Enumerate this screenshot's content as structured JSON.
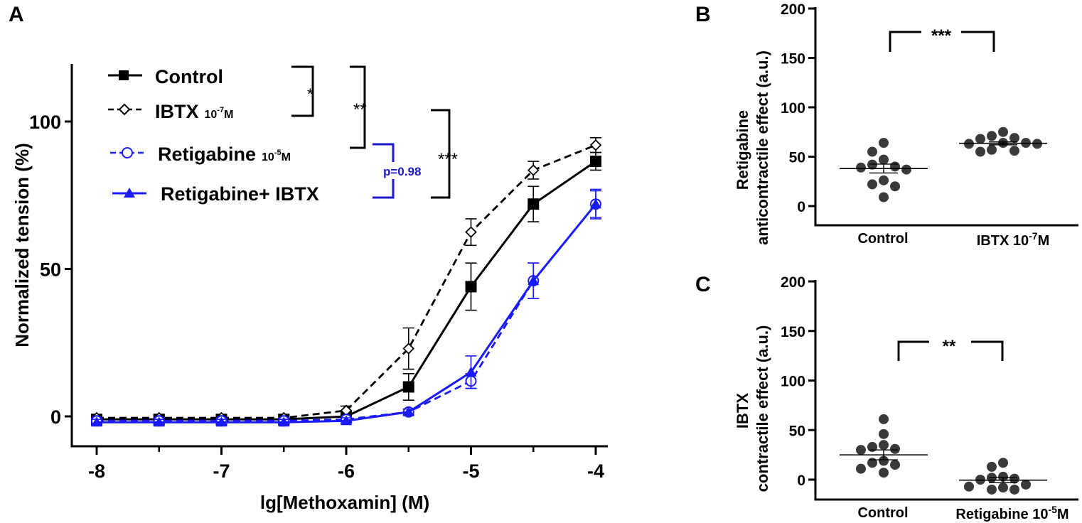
{
  "colors": {
    "black": "#000000",
    "blue": "#1a1aff",
    "annot_blue": "#1a1acc",
    "dot": "#3a3a3a"
  },
  "chart_data": [
    {
      "panel": "A",
      "type": "line",
      "xlabel": "lg[Methoxamin] (M)",
      "ylabel": "Normalized tension (%)",
      "xlim": [
        -8.2,
        -3.85
      ],
      "ylim": [
        -10,
        120
      ],
      "xticks": [
        "-8",
        "-7",
        "-6",
        "-5",
        "-4"
      ],
      "yticks": [
        "0",
        "50",
        "100"
      ],
      "x": [
        -8,
        -7.5,
        -7,
        -6.5,
        -6,
        -5.5,
        -5,
        -4.5,
        -4
      ],
      "series": [
        {
          "name": "Control",
          "suffix": "",
          "sup": "",
          "suffix_unit": "",
          "color": "#000000",
          "dash": "solid",
          "marker": "filled-square",
          "values": [
            -1,
            -1,
            -1,
            -1,
            0,
            10,
            44,
            72,
            86.5
          ],
          "errors": [
            1,
            1,
            1,
            1,
            1.5,
            4.5,
            8,
            6,
            3
          ]
        },
        {
          "name": "IBTX",
          "suffix": "10",
          "sup": "-7",
          "suffix_unit": "M",
          "color": "#000000",
          "dash": "dashed",
          "marker": "open-diamond",
          "values": [
            -0.5,
            -0.5,
            -0.5,
            -0.5,
            2,
            23,
            62.5,
            83.5,
            92
          ],
          "errors": [
            1,
            1,
            1,
            1,
            1.5,
            7,
            4.5,
            3,
            2.5
          ]
        },
        {
          "name": "Retigabine",
          "suffix": "10",
          "sup": "-5",
          "suffix_unit": "M",
          "color": "#1a1aff",
          "dash": "dashed",
          "marker": "open-circle",
          "values": [
            -1.5,
            -1.5,
            -1.5,
            -1.5,
            -1,
            1.5,
            12,
            46,
            72
          ],
          "errors": [
            1,
            1,
            1,
            1,
            1,
            1,
            2.5,
            6,
            5
          ]
        },
        {
          "name": "Retigabine+ IBTX",
          "suffix": "",
          "sup": "",
          "suffix_unit": "",
          "color": "#1a1aff",
          "dash": "solid",
          "marker": "filled-triangle",
          "values": [
            -2,
            -2,
            -2,
            -2,
            -1.5,
            1.5,
            15,
            46,
            72
          ],
          "errors": [
            1,
            1,
            1,
            1,
            1,
            1,
            5.5,
            6,
            4.5
          ]
        }
      ],
      "annotations": [
        "*",
        "**",
        "***",
        "p=0.98"
      ]
    },
    {
      "panel": "B",
      "type": "scatter",
      "ylabel": [
        "Retigabine",
        "anticontractile effect (a.u.)"
      ],
      "ylim": [
        -20,
        200
      ],
      "yticks": [
        "0",
        "50",
        "100",
        "150",
        "200"
      ],
      "groups": [
        {
          "label": "Control",
          "sup": "",
          "unit": "",
          "mean": 38,
          "sem": 4.5,
          "values": [
            64,
            55,
            47,
            42,
            40,
            39,
            37,
            26,
            22,
            20,
            9
          ]
        },
        {
          "label": "IBTX 10",
          "sup": "-7",
          "unit": "M",
          "mean": 63.5,
          "sem": 1.5,
          "values": [
            75,
            71,
            69,
            68,
            64,
            64,
            63,
            63,
            57,
            56,
            55
          ]
        }
      ],
      "significance": "***"
    },
    {
      "panel": "C",
      "type": "scatter",
      "ylabel": [
        "IBTX",
        "contractile effect (a.u.)"
      ],
      "ylim": [
        -20,
        200
      ],
      "yticks": [
        "0",
        "50",
        "100",
        "150",
        "200"
      ],
      "groups": [
        {
          "label": "Control",
          "sup": "",
          "unit": "",
          "mean": 25,
          "sem": 5,
          "values": [
            61,
            46,
            35,
            33,
            31,
            30,
            19,
            17,
            15,
            11,
            7
          ]
        },
        {
          "label": "Retigabine 10",
          "sup": "-5",
          "unit": "M",
          "mean": -0.5,
          "sem": 2.5,
          "values": [
            17,
            13,
            3,
            2,
            1,
            0,
            -5,
            -7,
            -8,
            -10,
            -10
          ]
        }
      ],
      "significance": "**"
    }
  ],
  "panel_labels": [
    "A",
    "B",
    "C"
  ]
}
